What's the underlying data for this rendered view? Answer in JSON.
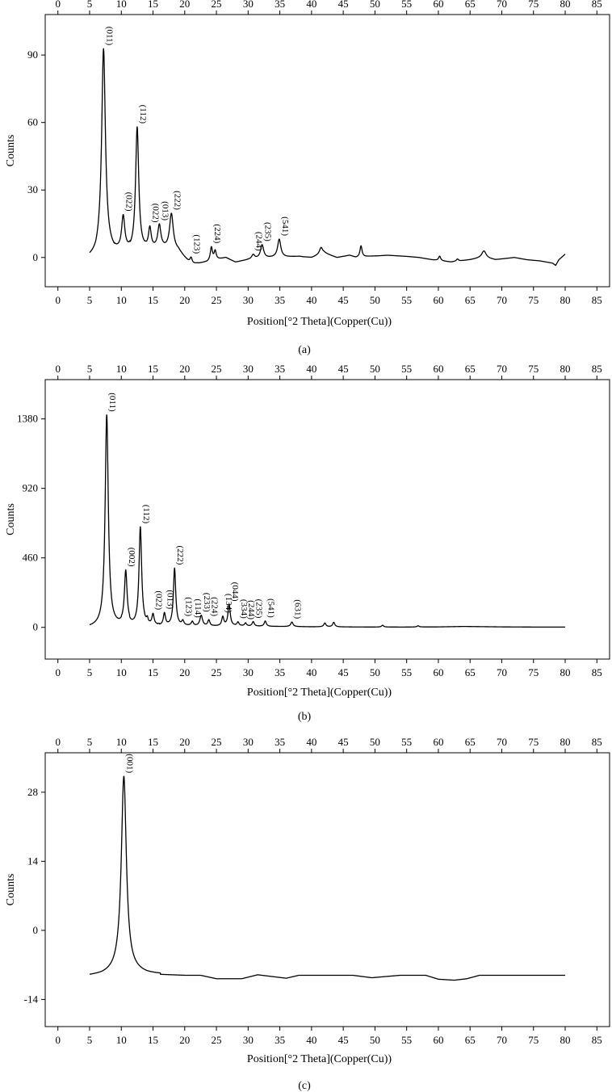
{
  "chart_data": [
    {
      "type": "line",
      "panel_label": "(a)",
      "xlabel": "Position[°2 Theta](Copper(Cu))",
      "ylabel": "Counts",
      "xlim": [
        -2,
        87
      ],
      "ylim": [
        -13,
        108
      ],
      "xticks": [
        0,
        5,
        10,
        15,
        20,
        25,
        30,
        35,
        40,
        45,
        50,
        55,
        60,
        65,
        70,
        75,
        80,
        85
      ],
      "yticks": [
        0,
        30,
        60,
        90
      ],
      "grid": false,
      "baseline": [
        [
          5,
          0
        ],
        [
          6,
          1
        ],
        [
          7,
          5
        ],
        [
          9,
          2
        ],
        [
          11,
          2
        ],
        [
          13.5,
          3
        ],
        [
          16.5,
          4
        ],
        [
          19,
          3
        ],
        [
          21,
          -3
        ],
        [
          23.5,
          -2
        ],
        [
          26.5,
          0
        ],
        [
          28,
          -2
        ],
        [
          30,
          -1
        ],
        [
          34,
          0
        ],
        [
          38,
          0.5
        ],
        [
          40,
          0
        ],
        [
          42,
          2
        ],
        [
          44,
          0
        ],
        [
          46,
          1
        ],
        [
          47,
          0
        ],
        [
          49,
          0.5
        ],
        [
          52,
          1
        ],
        [
          55,
          0.5
        ],
        [
          57,
          0
        ],
        [
          59,
          -1
        ],
        [
          62,
          -2
        ],
        [
          65,
          -1
        ],
        [
          67,
          0
        ],
        [
          69,
          -1
        ],
        [
          72,
          0
        ],
        [
          74,
          -1
        ],
        [
          76,
          -1.5
        ],
        [
          78,
          -2.5
        ],
        [
          78.5,
          -3.5
        ],
        [
          79,
          -1
        ],
        [
          80,
          1.5
        ]
      ],
      "peaks": [
        {
          "x": 7.2,
          "y": 88,
          "w": 0.35,
          "label": "(011)"
        },
        {
          "x": 10.3,
          "y": 15,
          "w": 0.3,
          "label": "(022)"
        },
        {
          "x": 12.5,
          "y": 55,
          "w": 0.3,
          "label": "(112)"
        },
        {
          "x": 14.5,
          "y": 9,
          "w": 0.25,
          "label": "(022)"
        },
        {
          "x": 16,
          "y": 10,
          "w": 0.3,
          "label": "(013)"
        },
        {
          "x": 17.9,
          "y": 16,
          "w": 0.35,
          "label": "(222)"
        },
        {
          "x": 21,
          "y": 3,
          "w": 0.2,
          "label": "(123)"
        },
        {
          "x": 24.2,
          "y": 6,
          "w": 0.2,
          "label": "(224)"
        },
        {
          "x": 24.8,
          "y": 4,
          "w": 0.2,
          "label": ""
        },
        {
          "x": 30.8,
          "y": 2,
          "w": 0.3,
          "label": "(244)"
        },
        {
          "x": 32.2,
          "y": 6,
          "w": 0.3,
          "label": "(235)"
        },
        {
          "x": 34.9,
          "y": 8,
          "w": 0.3,
          "label": "(541)"
        },
        {
          "x": 41.5,
          "y": 3,
          "w": 0.3,
          "label": ""
        },
        {
          "x": 47.8,
          "y": 5,
          "w": 0.2,
          "label": ""
        },
        {
          "x": 60.2,
          "y": 2,
          "w": 0.2,
          "label": ""
        },
        {
          "x": 63,
          "y": 1,
          "w": 0.2,
          "label": ""
        },
        {
          "x": 67.2,
          "y": 3,
          "w": 0.4,
          "label": ""
        }
      ]
    },
    {
      "type": "line",
      "panel_label": "(b)",
      "xlabel": "Position[°2 Theta](Copper(Cu))",
      "ylabel": "Counts",
      "xlim": [
        -2,
        87
      ],
      "ylim": [
        -210,
        1640
      ],
      "xticks": [
        0,
        5,
        10,
        15,
        20,
        25,
        30,
        35,
        40,
        45,
        50,
        55,
        60,
        65,
        70,
        75,
        80,
        85
      ],
      "yticks": [
        0,
        460,
        920,
        1380
      ],
      "grid": false,
      "baseline": [
        [
          5,
          0
        ],
        [
          6.5,
          5
        ],
        [
          9,
          8
        ],
        [
          12,
          10
        ],
        [
          15,
          12
        ],
        [
          20,
          10
        ],
        [
          25,
          8
        ],
        [
          30,
          8
        ],
        [
          35,
          6
        ],
        [
          40,
          4
        ],
        [
          45,
          3
        ],
        [
          50,
          2
        ],
        [
          55,
          2
        ],
        [
          60,
          3
        ],
        [
          64,
          6
        ],
        [
          70,
          3
        ],
        [
          75,
          2
        ],
        [
          80,
          2
        ]
      ],
      "peaks": [
        {
          "x": 7.7,
          "y": 1400,
          "w": 0.3,
          "label": "(011)"
        },
        {
          "x": 10.7,
          "y": 350,
          "w": 0.25,
          "label": "(002)"
        },
        {
          "x": 13,
          "y": 650,
          "w": 0.25,
          "label": "(112)"
        },
        {
          "x": 14.1,
          "y": 30,
          "w": 0.15,
          "label": ""
        },
        {
          "x": 15,
          "y": 70,
          "w": 0.2,
          "label": "(022)"
        },
        {
          "x": 16.8,
          "y": 80,
          "w": 0.2,
          "label": "(013)"
        },
        {
          "x": 18.4,
          "y": 380,
          "w": 0.22,
          "label": "(222)"
        },
        {
          "x": 19.7,
          "y": 30,
          "w": 0.2,
          "label": "(123)"
        },
        {
          "x": 21.2,
          "y": 30,
          "w": 0.2,
          "label": "(114)"
        },
        {
          "x": 22.6,
          "y": 70,
          "w": 0.25,
          "label": "(233)"
        },
        {
          "x": 23.8,
          "y": 40,
          "w": 0.2,
          "label": "(224)"
        },
        {
          "x": 26,
          "y": 60,
          "w": 0.2,
          "label": "(134)"
        },
        {
          "x": 27,
          "y": 140,
          "w": 0.22,
          "label": "(044)"
        },
        {
          "x": 28.4,
          "y": 25,
          "w": 0.2,
          "label": "(334)"
        },
        {
          "x": 29.6,
          "y": 20,
          "w": 0.2,
          "label": "(244)"
        },
        {
          "x": 30.8,
          "y": 30,
          "w": 0.2,
          "label": "(235)"
        },
        {
          "x": 32.7,
          "y": 35,
          "w": 0.2,
          "label": "(541)"
        },
        {
          "x": 36.9,
          "y": 30,
          "w": 0.22,
          "label": "(631)"
        },
        {
          "x": 42.1,
          "y": 25,
          "w": 0.2,
          "label": ""
        },
        {
          "x": 43.5,
          "y": 30,
          "w": 0.2,
          "label": ""
        },
        {
          "x": 51.2,
          "y": 12,
          "w": 0.2,
          "label": ""
        },
        {
          "x": 56.8,
          "y": 8,
          "w": 0.2,
          "label": ""
        }
      ]
    },
    {
      "type": "line",
      "panel_label": "(c)",
      "xlabel": "Position[°2 Theta](Copper(Cu))",
      "ylabel": "Counts",
      "xlim": [
        -2,
        87
      ],
      "ylim": [
        -19.5,
        36
      ],
      "xticks": [
        0,
        5,
        10,
        15,
        20,
        25,
        30,
        35,
        40,
        45,
        50,
        55,
        60,
        65,
        70,
        75,
        80,
        85
      ],
      "yticks": [
        -14,
        0,
        14,
        28
      ],
      "grid": false,
      "baseline": [
        [
          5,
          -9.2
        ],
        [
          7,
          -9
        ],
        [
          8.5,
          -8.6
        ],
        [
          9.5,
          -8.2
        ],
        [
          12,
          -8.4
        ],
        [
          14,
          -8.8
        ],
        [
          18,
          -9
        ],
        [
          20,
          -9.1
        ],
        [
          22.5,
          -9.1
        ],
        [
          25,
          -9.8
        ],
        [
          29,
          -9.8
        ],
        [
          31.5,
          -9
        ],
        [
          36,
          -9.7
        ],
        [
          38,
          -9.1
        ],
        [
          46.5,
          -9.1
        ],
        [
          49.5,
          -9.6
        ],
        [
          54,
          -9.1
        ],
        [
          58,
          -9.1
        ],
        [
          60,
          -9.9
        ],
        [
          62.5,
          -10.1
        ],
        [
          64.5,
          -9.8
        ],
        [
          66.5,
          -9.1
        ],
        [
          80,
          -9.1
        ]
      ],
      "peaks": [
        {
          "x": 10.4,
          "y": 39.5,
          "w": 0.48,
          "label": "(001)"
        }
      ]
    }
  ]
}
